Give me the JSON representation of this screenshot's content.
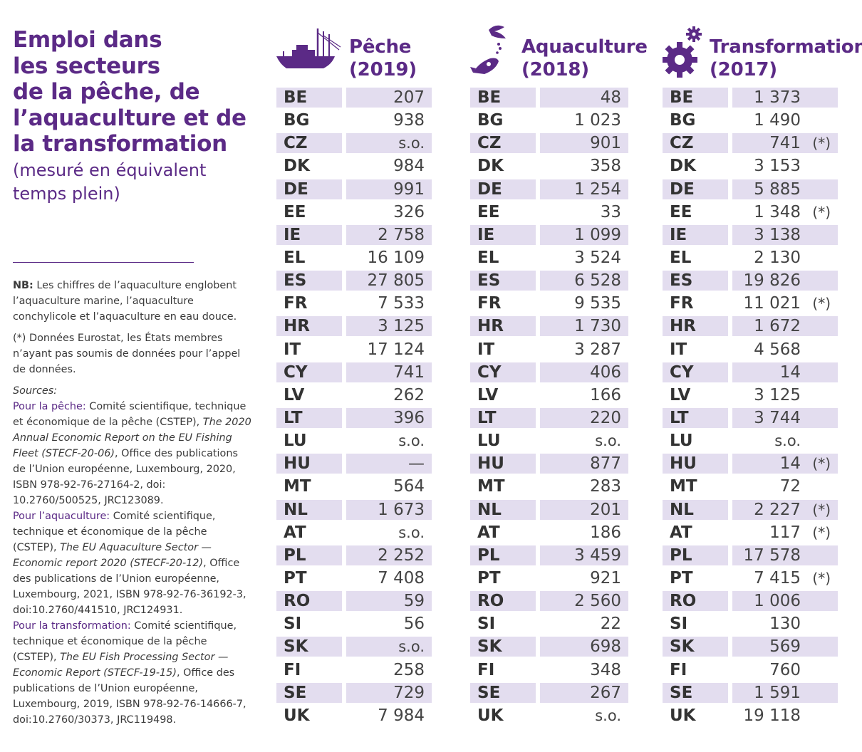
{
  "title": "Emploi dans\nles secteurs\nde la pêche, de\nl’aquaculture et de\nla transformation",
  "subtitle": "(mesuré en équivalent\ntemps plein)",
  "notes": {
    "nb_label": "NB:",
    "nb_text": " Les chiffres de l’aquaculture englobent l’aquaculture marine, l’aquaculture conchylicole et l’aquaculture en eau douce.",
    "eurostat": "(*) Données Eurostat, les États membres n’ayant pas soumis de données pour l’appel de données.",
    "sources_label": "Sources:",
    "peche_label": "Pour la pêche:",
    "peche_text1": " Comité scientifique, technique et économique de la pêche (CSTEP), ",
    "peche_title": "The 2020 Annual Economic Report on the EU Fishing Fleet (STECF-20-06)",
    "peche_text2": ", Office des publications de l’Union européenne, Luxembourg, 2020, ISBN 978-92-76-27164-2, doi: 10.2760/500525, JRC123089.",
    "aqua_label": "Pour l’aquaculture:",
    "aqua_text1": " Comité scientifique, technique et économique de la pêche (CSTEP), ",
    "aqua_title": "The EU Aquaculture Sector — Economic report 2020 (STECF-20-12)",
    "aqua_text2": ", Office des publications de l’Union européenne, Luxembourg, 2021, ISBN 978-92-76-36192-3, doi:10.2760/441510, JRC124931.",
    "trans_label": "Pour la transformation:",
    "trans_text1": " Comité scientifique, technique et économique de la pêche (CSTEP), ",
    "trans_title": "The EU Fish Processing Sector — Economic Report (STECF-19-15)",
    "trans_text2": ", Office des publications de l’Union européenne, Luxembourg, 2019, ISBN 978-92-76-14666-7, doi:10.2760/30373, JRC119498."
  },
  "columns": [
    {
      "title": "Pêche\n(2019)",
      "icon": "fishing-boat-icon"
    },
    {
      "title": "Aquaculture\n(2018)",
      "icon": "aquaculture-fish-icon"
    },
    {
      "title": "Transformation\n(2017)",
      "icon": "gears-icon"
    }
  ],
  "countries": [
    "BE",
    "BG",
    "CZ",
    "DK",
    "DE",
    "EE",
    "IE",
    "EL",
    "ES",
    "FR",
    "HR",
    "IT",
    "CY",
    "LV",
    "LT",
    "LU",
    "HU",
    "MT",
    "NL",
    "AT",
    "PL",
    "PT",
    "RO",
    "SI",
    "SK",
    "FI",
    "SE",
    "UK"
  ],
  "peche": [
    "207",
    "938",
    "s.o.",
    "984",
    "991",
    "326",
    "2 758",
    "16 109",
    "27 805",
    "7 533",
    "3 125",
    "17 124",
    "741",
    "262",
    "396",
    "s.o.",
    "—",
    "564",
    "1 673",
    "s.o.",
    "2 252",
    "7 408",
    "59",
    "56",
    "s.o.",
    "258",
    "729",
    "7 984"
  ],
  "aquaculture": [
    "48",
    "1 023",
    "901",
    "358",
    "1 254",
    "33",
    "1 099",
    "3 524",
    "6 528",
    "9 535",
    "1 730",
    "3 287",
    "406",
    "166",
    "220",
    "s.o.",
    "877",
    "283",
    "201",
    "186",
    "3 459",
    "921",
    "2 560",
    "22",
    "698",
    "348",
    "267",
    "s.o."
  ],
  "transformation": [
    "1 373",
    "1 490",
    "741",
    "3 153",
    "5 885",
    "1 348",
    "3 138",
    "2 130",
    "19 826",
    "11 021",
    "1 672",
    "4 568",
    "14",
    "3 125",
    "3 744",
    "s.o.",
    "14",
    "72",
    "2 227",
    "117",
    "17 578",
    "7 415",
    "1 006",
    "130",
    "569",
    "760",
    "1 591",
    "19 118"
  ],
  "transformation_marks": [
    "",
    "",
    "(*)",
    "",
    "",
    "(*)",
    "",
    "",
    "",
    "(*)",
    "",
    "",
    "",
    "",
    "",
    "",
    "(*)",
    "",
    "(*)",
    "(*)",
    "",
    "(*)",
    "",
    "",
    "",
    "",
    "",
    ""
  ],
  "colors": {
    "accent": "#5b2a86",
    "shade": "#e3ddef"
  }
}
